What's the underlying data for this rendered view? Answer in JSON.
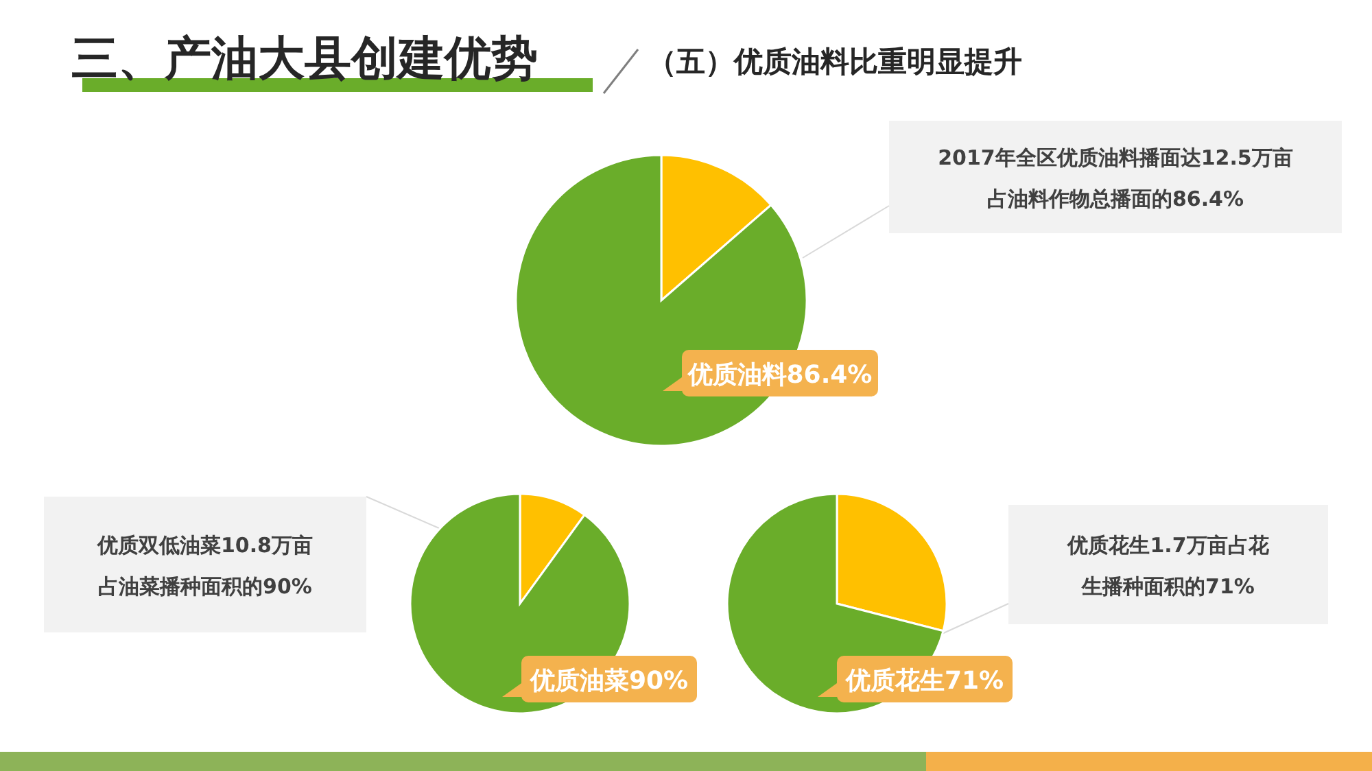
{
  "chart_data": [
    {
      "type": "pie",
      "title": "三、产油大县创建优势",
      "subtitle": "（五）优质油料比重明显提升",
      "categories": [
        null,
        "优质油料"
      ],
      "values": [
        13.6,
        86.4
      ],
      "value_labels": [
        null,
        "86.4%"
      ],
      "colors": [
        "#ffc000",
        "#6aad2a"
      ],
      "annotations": [
        "2017年全区优质油料播面达12.5万亩占油料作物总播面的86.4%"
      ]
    },
    {
      "type": "pie",
      "categories": [
        null,
        "优质油菜"
      ],
      "values": [
        10,
        90
      ],
      "value_labels": [
        null,
        "90%"
      ],
      "colors": [
        "#ffc000",
        "#6aad2a"
      ],
      "annotations": [
        "优质双低油菜10.8万亩占油菜播种面积的90%"
      ]
    },
    {
      "type": "pie",
      "categories": [
        null,
        "优质花生"
      ],
      "values": [
        29,
        71
      ],
      "value_labels": [
        null,
        "71%"
      ],
      "colors": [
        "#ffc000",
        "#6aad2a"
      ],
      "annotations": [
        "优质花生1.7万亩占花生播种面积的71%"
      ]
    }
  ]
}
